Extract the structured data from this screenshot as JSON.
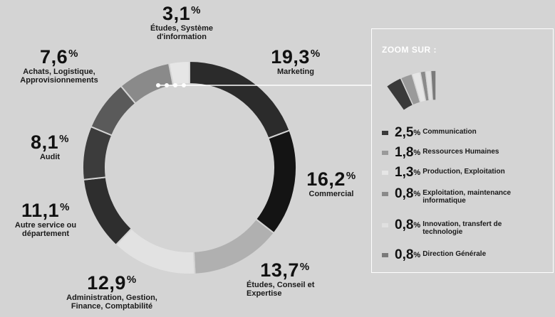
{
  "chart_data": {
    "type": "pie",
    "style": "donut",
    "categories": [
      "Marketing",
      "Commercial",
      "Études, Conseil et Expertise",
      "Administration, Gestion, Finance, Comptabilité",
      "Autre service ou département",
      "Audit",
      "Achats, Logistique, Approvisionnements",
      "Zoom",
      "Études, Système d'information"
    ],
    "values": [
      19.3,
      16.2,
      13.7,
      12.9,
      11.1,
      8.1,
      7.6,
      8.0,
      3.1
    ],
    "value_labels": [
      "19,3",
      "16,2",
      "13,7",
      "12,9",
      "11,1",
      "8,1",
      "7,6",
      "",
      "3,1"
    ],
    "colors": [
      "#2b2b2b",
      "#141414",
      "#b0b0b0",
      "#e2e2e2",
      "#2e2e2e",
      "#3c3c3c",
      "#5a5a5a",
      "#8a8a8a",
      "#e6e6e6"
    ],
    "zoom": {
      "title": "ZOOM SUR :",
      "items": [
        {
          "label": "Communication",
          "value": 2.5,
          "value_label": "2,5",
          "color": "#3a3a3a"
        },
        {
          "label": "Ressources Humaines",
          "value": 1.8,
          "value_label": "1,8",
          "color": "#9a9a9a"
        },
        {
          "label": "Production, Exploitation",
          "value": 1.3,
          "value_label": "1,3",
          "color": "#e6e6e6"
        },
        {
          "label": "Exploitation, maintenance informatique",
          "value": 0.8,
          "value_label": "0,8",
          "color": "#8a8a8a"
        },
        {
          "label": "Innovation, transfert de technologie",
          "value": 0.8,
          "value_label": "0,8",
          "color": "#e0e0e0"
        },
        {
          "label": "Direction Générale",
          "value": 0.8,
          "value_label": "0,8",
          "color": "#7a7a7a"
        }
      ]
    },
    "percent_sign": "%"
  }
}
